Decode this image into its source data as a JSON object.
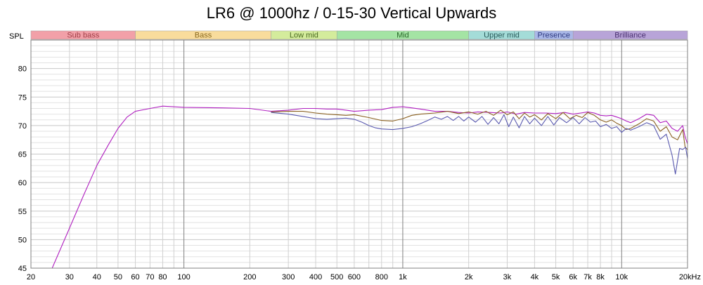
{
  "chart_data": {
    "type": "line",
    "title": "LR6 @ 1000hz / 0-15-30 Vertical Upwards",
    "ylabel": "SPL",
    "xlabel": "",
    "x_scale": "log",
    "xlim": [
      20,
      20000
    ],
    "ylim": [
      45,
      85
    ],
    "grid": true,
    "x_ticks": [
      {
        "v": 20,
        "label": "20"
      },
      {
        "v": 30,
        "label": "30"
      },
      {
        "v": 40,
        "label": "40"
      },
      {
        "v": 50,
        "label": "50"
      },
      {
        "v": 60,
        "label": "60"
      },
      {
        "v": 70,
        "label": "70"
      },
      {
        "v": 80,
        "label": "80"
      },
      {
        "v": 100,
        "label": "100"
      },
      {
        "v": 200,
        "label": "200"
      },
      {
        "v": 300,
        "label": "300"
      },
      {
        "v": 400,
        "label": "400"
      },
      {
        "v": 500,
        "label": "500"
      },
      {
        "v": 600,
        "label": "600"
      },
      {
        "v": 800,
        "label": "800"
      },
      {
        "v": 1000,
        "label": "1k"
      },
      {
        "v": 2000,
        "label": "2k"
      },
      {
        "v": 3000,
        "label": "3k"
      },
      {
        "v": 4000,
        "label": "4k"
      },
      {
        "v": 5000,
        "label": "5k"
      },
      {
        "v": 6000,
        "label": "6k"
      },
      {
        "v": 7000,
        "label": "7k"
      },
      {
        "v": 8000,
        "label": "8k"
      },
      {
        "v": 10000,
        "label": "10k"
      },
      {
        "v": 20000,
        "label": "20kHz"
      }
    ],
    "y_ticks": [
      {
        "v": 45,
        "label": "45"
      },
      {
        "v": 50,
        "label": "50"
      },
      {
        "v": 55,
        "label": "55"
      },
      {
        "v": 60,
        "label": "60"
      },
      {
        "v": 65,
        "label": "65"
      },
      {
        "v": 70,
        "label": "70"
      },
      {
        "v": 75,
        "label": "75"
      },
      {
        "v": 80,
        "label": "80"
      }
    ],
    "bands": [
      {
        "name": "Sub bass",
        "from": 20,
        "to": 60,
        "fill": "#f2a0a8",
        "text": "#a04048"
      },
      {
        "name": "Bass",
        "from": 60,
        "to": 250,
        "fill": "#f9dc9c",
        "text": "#8a6a20"
      },
      {
        "name": "Low mid",
        "from": 250,
        "to": 500,
        "fill": "#d4ec9c",
        "text": "#4a6a20"
      },
      {
        "name": "Mid",
        "from": 500,
        "to": 2000,
        "fill": "#a4e4a4",
        "text": "#2a6a2a"
      },
      {
        "name": "Upper mid",
        "from": 2000,
        "to": 4000,
        "fill": "#a4dcd8",
        "text": "#2a5a5a"
      },
      {
        "name": "Presence",
        "from": 4000,
        "to": 6000,
        "fill": "#aab8e8",
        "text": "#303a80"
      },
      {
        "name": "Brilliance",
        "from": 6000,
        "to": 20000,
        "fill": "#b8a4d8",
        "text": "#4a3070"
      }
    ],
    "series": [
      {
        "color": "#b020c0",
        "points": [
          [
            25,
            45
          ],
          [
            30,
            52
          ],
          [
            35,
            58
          ],
          [
            40,
            63
          ],
          [
            45,
            66.5
          ],
          [
            50,
            69.5
          ],
          [
            55,
            71.5
          ],
          [
            60,
            72.5
          ],
          [
            70,
            73
          ],
          [
            80,
            73.4
          ],
          [
            100,
            73.2
          ],
          [
            150,
            73.1
          ],
          [
            200,
            73.0
          ],
          [
            250,
            72.5
          ],
          [
            300,
            72.7
          ],
          [
            350,
            73.0
          ],
          [
            400,
            73.0
          ],
          [
            450,
            72.9
          ],
          [
            500,
            72.9
          ],
          [
            550,
            72.7
          ],
          [
            600,
            72.5
          ],
          [
            700,
            72.7
          ],
          [
            800,
            72.8
          ],
          [
            900,
            73.2
          ],
          [
            1000,
            73.3
          ],
          [
            1100,
            73.1
          ],
          [
            1200,
            72.9
          ],
          [
            1400,
            72.5
          ],
          [
            1600,
            72.5
          ],
          [
            1800,
            72.3
          ],
          [
            2000,
            72.2
          ],
          [
            2200,
            72.4
          ],
          [
            2500,
            72.3
          ],
          [
            2800,
            72.2
          ],
          [
            3000,
            72.4
          ],
          [
            3300,
            72.0
          ],
          [
            3600,
            72.3
          ],
          [
            4000,
            72.2
          ],
          [
            4500,
            72.2
          ],
          [
            5000,
            72.1
          ],
          [
            5500,
            72.3
          ],
          [
            6000,
            72.0
          ],
          [
            6500,
            72.2
          ],
          [
            7000,
            72.4
          ],
          [
            7500,
            72.2
          ],
          [
            8000,
            71.8
          ],
          [
            8500,
            71.7
          ],
          [
            9000,
            71.8
          ],
          [
            9500,
            71.5
          ],
          [
            10000,
            71.2
          ],
          [
            10500,
            70.8
          ],
          [
            11000,
            70.5
          ],
          [
            12000,
            71.2
          ],
          [
            13000,
            72.0
          ],
          [
            14000,
            71.8
          ],
          [
            15000,
            70.5
          ],
          [
            16000,
            70.8
          ],
          [
            17000,
            69.5
          ],
          [
            18000,
            69.0
          ],
          [
            19000,
            70.0
          ],
          [
            19500,
            68.0
          ],
          [
            20000,
            66.8
          ]
        ]
      },
      {
        "color": "#8a6020",
        "points": [
          [
            250,
            72.4
          ],
          [
            300,
            72.5
          ],
          [
            350,
            72.5
          ],
          [
            400,
            72.2
          ],
          [
            450,
            72.0
          ],
          [
            500,
            71.9
          ],
          [
            550,
            71.8
          ],
          [
            600,
            71.9
          ],
          [
            700,
            71.4
          ],
          [
            800,
            70.9
          ],
          [
            900,
            70.8
          ],
          [
            1000,
            71.2
          ],
          [
            1100,
            71.8
          ],
          [
            1200,
            72.0
          ],
          [
            1400,
            72.2
          ],
          [
            1600,
            72.5
          ],
          [
            1800,
            72.1
          ],
          [
            2000,
            72.4
          ],
          [
            2200,
            72.0
          ],
          [
            2400,
            72.5
          ],
          [
            2600,
            71.8
          ],
          [
            2800,
            72.7
          ],
          [
            3000,
            71.9
          ],
          [
            3200,
            72.4
          ],
          [
            3400,
            71.2
          ],
          [
            3600,
            72.2
          ],
          [
            3800,
            71.5
          ],
          [
            4000,
            71.9
          ],
          [
            4300,
            71.0
          ],
          [
            4600,
            72.1
          ],
          [
            5000,
            71.2
          ],
          [
            5400,
            72.3
          ],
          [
            5800,
            71.2
          ],
          [
            6200,
            71.8
          ],
          [
            6600,
            71.4
          ],
          [
            7000,
            72.3
          ],
          [
            7500,
            71.8
          ],
          [
            8000,
            71.0
          ],
          [
            8500,
            70.6
          ],
          [
            9000,
            71.0
          ],
          [
            9500,
            70.4
          ],
          [
            10000,
            70.0
          ],
          [
            10500,
            69.3
          ],
          [
            11000,
            69.5
          ],
          [
            12000,
            70.3
          ],
          [
            13000,
            71.2
          ],
          [
            14000,
            70.8
          ],
          [
            15000,
            69.0
          ],
          [
            16000,
            69.8
          ],
          [
            17000,
            68.0
          ],
          [
            18000,
            67.5
          ],
          [
            19000,
            69.3
          ],
          [
            19500,
            66.2
          ],
          [
            20000,
            65.8
          ]
        ]
      },
      {
        "color": "#5a5ab0",
        "points": [
          [
            250,
            72.3
          ],
          [
            300,
            72.0
          ],
          [
            350,
            71.6
          ],
          [
            400,
            71.2
          ],
          [
            450,
            71.1
          ],
          [
            500,
            71.2
          ],
          [
            550,
            71.3
          ],
          [
            600,
            71.1
          ],
          [
            650,
            70.6
          ],
          [
            700,
            70.0
          ],
          [
            750,
            69.6
          ],
          [
            800,
            69.4
          ],
          [
            900,
            69.3
          ],
          [
            1000,
            69.5
          ],
          [
            1100,
            69.8
          ],
          [
            1200,
            70.3
          ],
          [
            1300,
            70.9
          ],
          [
            1400,
            71.5
          ],
          [
            1500,
            71.1
          ],
          [
            1600,
            71.6
          ],
          [
            1700,
            70.9
          ],
          [
            1800,
            71.6
          ],
          [
            1900,
            70.8
          ],
          [
            2000,
            71.5
          ],
          [
            2150,
            70.6
          ],
          [
            2300,
            71.6
          ],
          [
            2450,
            70.2
          ],
          [
            2600,
            71.4
          ],
          [
            2750,
            70.3
          ],
          [
            2900,
            71.9
          ],
          [
            3050,
            69.8
          ],
          [
            3200,
            71.5
          ],
          [
            3400,
            69.6
          ],
          [
            3600,
            71.6
          ],
          [
            3800,
            70.3
          ],
          [
            4000,
            71.3
          ],
          [
            4300,
            70.0
          ],
          [
            4600,
            71.6
          ],
          [
            4900,
            70.1
          ],
          [
            5200,
            71.4
          ],
          [
            5600,
            70.5
          ],
          [
            6000,
            71.4
          ],
          [
            6400,
            70.3
          ],
          [
            6800,
            71.4
          ],
          [
            7200,
            70.6
          ],
          [
            7600,
            70.8
          ],
          [
            8000,
            69.8
          ],
          [
            8500,
            70.2
          ],
          [
            9000,
            69.5
          ],
          [
            9500,
            69.8
          ],
          [
            10000,
            68.8
          ],
          [
            10500,
            69.5
          ],
          [
            11000,
            69.2
          ],
          [
            12000,
            69.8
          ],
          [
            13000,
            70.5
          ],
          [
            14000,
            70.0
          ],
          [
            15000,
            67.6
          ],
          [
            16000,
            68.5
          ],
          [
            17000,
            64.8
          ],
          [
            17600,
            61.5
          ],
          [
            18400,
            66.0
          ],
          [
            19000,
            65.8
          ],
          [
            19600,
            66.2
          ],
          [
            20000,
            64.2
          ]
        ]
      }
    ]
  }
}
